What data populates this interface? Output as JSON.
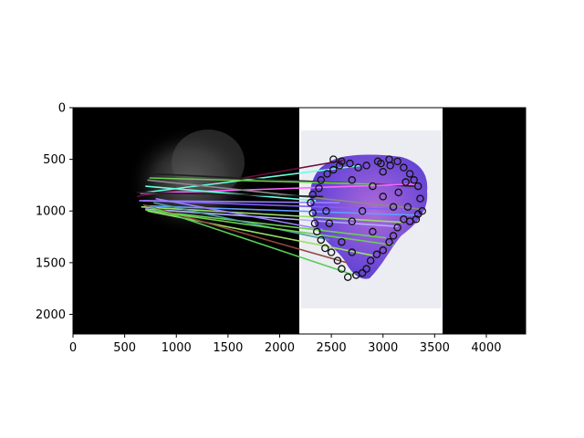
{
  "figure": {
    "background": "#ffffff",
    "image_size_units": {
      "width": 4380,
      "height": 2190
    },
    "left_panel": {
      "description_tags": [
        "dark-background",
        "gray-tissue-blob"
      ],
      "x_range": [
        0,
        2190
      ],
      "background": "#000000"
    },
    "right_panel": {
      "x_range": [
        2190,
        3570
      ],
      "page_color": "#ffffff",
      "slide_color": "#ececf3",
      "tissue_color": "#7b4fd6"
    },
    "black_right_margin": {
      "x_range": [
        3570,
        4380
      ],
      "background": "#000000"
    }
  },
  "axes": {
    "x_ticks": [
      "0",
      "500",
      "1000",
      "1500",
      "2000",
      "2500",
      "3000",
      "3500",
      "4000"
    ],
    "x_tick_values": [
      0,
      500,
      1000,
      1500,
      2000,
      2500,
      3000,
      3500,
      4000
    ],
    "y_ticks": [
      "0",
      "500",
      "1000",
      "1500",
      "2000"
    ],
    "y_tick_values": [
      0,
      500,
      1000,
      1500,
      2000
    ],
    "xlim": [
      0,
      4380
    ],
    "ylim": [
      2190,
      0
    ]
  },
  "matches": {
    "line_colors": [
      "#6a0d3a",
      "#ff66ff",
      "#66ffe0",
      "#9a7fff",
      "#1f1f1f",
      "#8a8a8a",
      "#7f5fff",
      "#5f9fff",
      "#99e066",
      "#6ad04f",
      "#8b4a3a",
      "#4aa0a0",
      "#b0b0ff",
      "#55cc55"
    ],
    "segments": [
      {
        "from": [
          620,
          860
        ],
        "to": [
          2620,
          510
        ],
        "color": "#6a0d3a"
      },
      {
        "from": [
          700,
          820
        ],
        "to": [
          2780,
          560
        ],
        "color": "#66ffe0"
      },
      {
        "from": [
          760,
          640
        ],
        "to": [
          3300,
          760
        ],
        "color": "#1f1f1f"
      },
      {
        "from": [
          650,
          830
        ],
        "to": [
          3330,
          740
        ],
        "color": "#ff66ff"
      },
      {
        "from": [
          720,
          700
        ],
        "to": [
          3350,
          980
        ],
        "color": "#8a8a8a"
      },
      {
        "from": [
          680,
          900
        ],
        "to": [
          3260,
          990
        ],
        "color": "#7f5fff"
      },
      {
        "from": [
          690,
          950
        ],
        "to": [
          3330,
          1040
        ],
        "color": "#5f9fff"
      },
      {
        "from": [
          660,
          960
        ],
        "to": [
          3200,
          1110
        ],
        "color": "#99e066"
      },
      {
        "from": [
          700,
          980
        ],
        "to": [
          3140,
          1150
        ],
        "color": "#b0b0ff"
      },
      {
        "from": [
          700,
          990
        ],
        "to": [
          3030,
          1260
        ],
        "color": "#6ad04f"
      },
      {
        "from": [
          720,
          1000
        ],
        "to": [
          2900,
          1430
        ],
        "color": "#99e066"
      },
      {
        "from": [
          680,
          940
        ],
        "to": [
          2650,
          1500
        ],
        "color": "#8b4a3a"
      },
      {
        "from": [
          740,
          960
        ],
        "to": [
          2720,
          1620
        ],
        "color": "#55cc55"
      },
      {
        "from": [
          780,
          920
        ],
        "to": [
          2480,
          1280
        ],
        "color": "#4aa0a0"
      },
      {
        "from": [
          800,
          880
        ],
        "to": [
          2420,
          1180
        ],
        "color": "#9a7fff"
      },
      {
        "from": [
          640,
          900
        ],
        "to": [
          2580,
          920
        ],
        "color": "#9a7fff"
      },
      {
        "from": [
          700,
          760
        ],
        "to": [
          2350,
          900
        ],
        "color": "#66ffe0"
      },
      {
        "from": [
          740,
          680
        ],
        "to": [
          2930,
          740
        ],
        "color": "#6ad04f"
      },
      {
        "from": [
          620,
          820
        ],
        "to": [
          2420,
          860
        ],
        "color": "#1f1f1f"
      },
      {
        "from": [
          760,
          1000
        ],
        "to": [
          3100,
          1330
        ],
        "color": "#6ad04f"
      }
    ],
    "keypoints_right": [
      [
        2520,
        500
      ],
      [
        2600,
        520
      ],
      [
        2680,
        540
      ],
      [
        2760,
        580
      ],
      [
        2840,
        560
      ],
      [
        2950,
        520
      ],
      [
        3060,
        500
      ],
      [
        3140,
        520
      ],
      [
        3200,
        580
      ],
      [
        3260,
        640
      ],
      [
        3300,
        700
      ],
      [
        3340,
        760
      ],
      [
        3360,
        880
      ],
      [
        3380,
        1000
      ],
      [
        3320,
        1080
      ],
      [
        3260,
        1100
      ],
      [
        3200,
        1080
      ],
      [
        3140,
        1160
      ],
      [
        3100,
        1240
      ],
      [
        3060,
        1300
      ],
      [
        3000,
        1380
      ],
      [
        2940,
        1420
      ],
      [
        2880,
        1480
      ],
      [
        2840,
        1560
      ],
      [
        2800,
        1600
      ],
      [
        2740,
        1620
      ],
      [
        2660,
        1640
      ],
      [
        2600,
        1560
      ],
      [
        2560,
        1480
      ],
      [
        2500,
        1400
      ],
      [
        2440,
        1360
      ],
      [
        2400,
        1280
      ],
      [
        2360,
        1200
      ],
      [
        2340,
        1120
      ],
      [
        2320,
        1020
      ],
      [
        2300,
        920
      ],
      [
        2320,
        840
      ],
      [
        2380,
        780
      ],
      [
        2400,
        700
      ],
      [
        2460,
        640
      ],
      [
        2520,
        600
      ],
      [
        2580,
        560
      ],
      [
        2700,
        700
      ],
      [
        2900,
        760
      ],
      [
        3000,
        860
      ],
      [
        3100,
        960
      ],
      [
        2800,
        1000
      ],
      [
        2700,
        1100
      ],
      [
        2900,
        1200
      ],
      [
        3000,
        620
      ],
      [
        2980,
        540
      ],
      [
        3070,
        560
      ],
      [
        3240,
        960
      ],
      [
        3340,
        1030
      ],
      [
        2450,
        1000
      ],
      [
        2480,
        1120
      ],
      [
        2600,
        1300
      ],
      [
        2700,
        1400
      ],
      [
        3150,
        820
      ],
      [
        3220,
        720
      ]
    ]
  }
}
